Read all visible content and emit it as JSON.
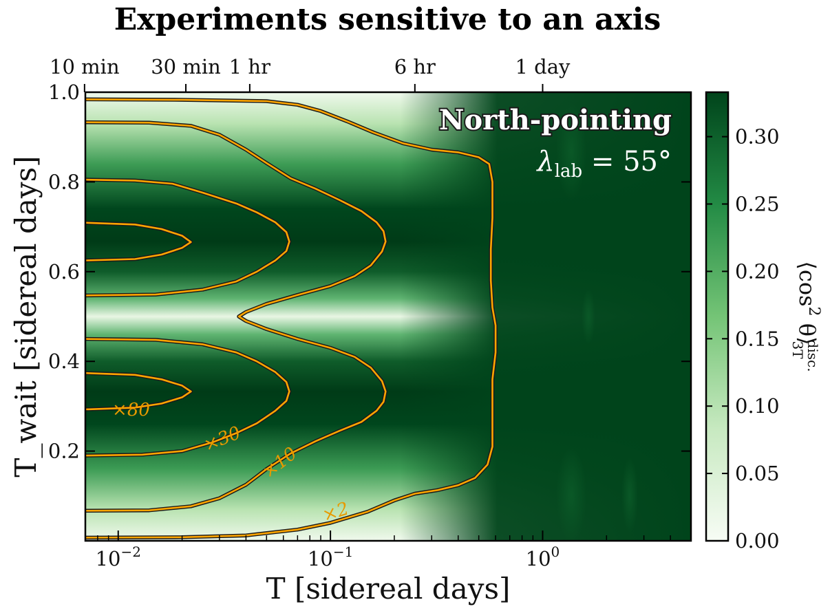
{
  "chart_data": {
    "type": "heatmap",
    "title": "Experiments sensitive to an axis",
    "xlabel": "T [sidereal days]",
    "ylabel": "T_wait [sidereal days]",
    "x_scale": "log",
    "xlim": [
      0.007,
      5
    ],
    "ylim": [
      0.0,
      1.0
    ],
    "x_ticks": [
      {
        "value": 0.01,
        "base": "10",
        "exp": "−2"
      },
      {
        "value": 0.1,
        "base": "10",
        "exp": "−1"
      },
      {
        "value": 1,
        "base": "10",
        "exp": "0"
      }
    ],
    "y_ticks": [
      {
        "value": 0.2,
        "label": "0.2"
      },
      {
        "value": 0.4,
        "label": "0.4"
      },
      {
        "value": 0.6,
        "label": "0.6"
      },
      {
        "value": 0.8,
        "label": "0.8"
      },
      {
        "value": 1.0,
        "label": "1.0"
      }
    ],
    "top_axis_ticks": [
      {
        "value": 0.00694,
        "label": "10 min"
      },
      {
        "value": 0.02083,
        "label": "30 min"
      },
      {
        "value": 0.04167,
        "label": "1 hr"
      },
      {
        "value": 0.25,
        "label": "6 hr"
      },
      {
        "value": 1.0,
        "label": "1 day"
      }
    ],
    "colorbar": {
      "label_main": "⟨cos",
      "label_sup": "2",
      "label_theta": " θ⟩",
      "label_sub": "3T",
      "label_subsup": "disc.",
      "range": [
        0.0,
        0.333
      ],
      "colors": [
        "#f7fcf5",
        "#c7e9c0",
        "#74c476",
        "#238b45",
        "#00441b"
      ],
      "ticks": [
        {
          "value": 0.0,
          "label": "0.00"
        },
        {
          "value": 0.05,
          "label": "0.05"
        },
        {
          "value": 0.1,
          "label": "0.10"
        },
        {
          "value": 0.15,
          "label": "0.15"
        },
        {
          "value": 0.2,
          "label": "0.20"
        },
        {
          "value": 0.25,
          "label": "0.25"
        },
        {
          "value": 0.3,
          "label": "0.30"
        }
      ]
    },
    "contours": [
      {
        "label": "×80",
        "label_at": [
          0.0115,
          0.29
        ],
        "label_angle": 0,
        "paths": [
          [
            [
              0.007,
              0.293
            ],
            [
              0.012,
              0.297
            ],
            [
              0.016,
              0.306
            ],
            [
              0.02,
              0.32
            ],
            [
              0.022,
              0.333
            ],
            [
              0.02,
              0.346
            ],
            [
              0.016,
              0.36
            ],
            [
              0.012,
              0.37
            ],
            [
              0.007,
              0.374
            ]
          ],
          [
            [
              0.007,
              0.625
            ],
            [
              0.012,
              0.628
            ],
            [
              0.016,
              0.638
            ],
            [
              0.02,
              0.653
            ],
            [
              0.022,
              0.666
            ],
            [
              0.02,
              0.68
            ],
            [
              0.016,
              0.695
            ],
            [
              0.012,
              0.705
            ],
            [
              0.007,
              0.709
            ]
          ]
        ]
      },
      {
        "label": "×30",
        "label_at": [
          0.031,
          0.225
        ],
        "label_angle": -22,
        "paths": [
          [
            [
              0.007,
              0.19
            ],
            [
              0.013,
              0.192
            ],
            [
              0.02,
              0.2
            ],
            [
              0.028,
              0.22
            ],
            [
              0.036,
              0.24
            ],
            [
              0.045,
              0.262
            ],
            [
              0.055,
              0.29
            ],
            [
              0.062,
              0.312
            ],
            [
              0.064,
              0.333
            ],
            [
              0.062,
              0.354
            ],
            [
              0.055,
              0.376
            ],
            [
              0.045,
              0.4
            ],
            [
              0.036,
              0.42
            ],
            [
              0.025,
              0.438
            ],
            [
              0.015,
              0.448
            ],
            [
              0.007,
              0.45
            ]
          ],
          [
            [
              0.007,
              0.547
            ],
            [
              0.015,
              0.549
            ],
            [
              0.025,
              0.56
            ],
            [
              0.036,
              0.578
            ],
            [
              0.045,
              0.6
            ],
            [
              0.055,
              0.625
            ],
            [
              0.062,
              0.646
            ],
            [
              0.064,
              0.667
            ],
            [
              0.062,
              0.688
            ],
            [
              0.055,
              0.71
            ],
            [
              0.045,
              0.732
            ],
            [
              0.036,
              0.752
            ],
            [
              0.025,
              0.776
            ],
            [
              0.018,
              0.796
            ],
            [
              0.012,
              0.803
            ],
            [
              0.007,
              0.805
            ]
          ]
        ]
      },
      {
        "label": "×10",
        "label_at": [
          0.058,
          0.172
        ],
        "label_angle": -38,
        "paths": [
          [
            [
              0.007,
              0.067
            ],
            [
              0.014,
              0.068
            ],
            [
              0.022,
              0.077
            ],
            [
              0.03,
              0.095
            ],
            [
              0.04,
              0.125
            ],
            [
              0.05,
              0.16
            ],
            [
              0.065,
              0.195
            ],
            [
              0.085,
              0.222
            ],
            [
              0.11,
              0.245
            ],
            [
              0.14,
              0.265
            ],
            [
              0.165,
              0.29
            ],
            [
              0.178,
              0.31
            ],
            [
              0.182,
              0.333
            ],
            [
              0.175,
              0.356
            ],
            [
              0.155,
              0.386
            ],
            [
              0.13,
              0.41
            ],
            [
              0.1,
              0.43
            ],
            [
              0.07,
              0.45
            ],
            [
              0.05,
              0.472
            ],
            [
              0.04,
              0.49
            ],
            [
              0.037,
              0.5
            ],
            [
              0.04,
              0.51
            ],
            [
              0.05,
              0.528
            ],
            [
              0.07,
              0.548
            ],
            [
              0.1,
              0.568
            ],
            [
              0.13,
              0.59
            ],
            [
              0.155,
              0.614
            ],
            [
              0.175,
              0.645
            ],
            [
              0.182,
              0.667
            ],
            [
              0.178,
              0.69
            ],
            [
              0.165,
              0.71
            ],
            [
              0.14,
              0.735
            ],
            [
              0.11,
              0.76
            ],
            [
              0.085,
              0.785
            ],
            [
              0.065,
              0.808
            ],
            [
              0.05,
              0.842
            ],
            [
              0.04,
              0.872
            ],
            [
              0.03,
              0.905
            ],
            [
              0.022,
              0.925
            ],
            [
              0.014,
              0.932
            ],
            [
              0.007,
              0.933
            ]
          ]
        ]
      },
      {
        "label": "×2",
        "label_at": [
          0.106,
          0.062
        ],
        "label_angle": -18,
        "paths": [
          [
            [
              0.007,
              0.007
            ],
            [
              0.02,
              0.008
            ],
            [
              0.04,
              0.012
            ],
            [
              0.07,
              0.025
            ],
            [
              0.1,
              0.04
            ],
            [
              0.15,
              0.065
            ],
            [
              0.2,
              0.09
            ],
            [
              0.25,
              0.105
            ],
            [
              0.32,
              0.113
            ],
            [
              0.4,
              0.124
            ],
            [
              0.48,
              0.14
            ],
            [
              0.55,
              0.17
            ],
            [
              0.58,
              0.21
            ],
            [
              0.58,
              0.28
            ],
            [
              0.58,
              0.36
            ],
            [
              0.6,
              0.42
            ],
            [
              0.6,
              0.48
            ],
            [
              0.58,
              0.52
            ],
            [
              0.57,
              0.58
            ],
            [
              0.57,
              0.65
            ],
            [
              0.58,
              0.72
            ],
            [
              0.58,
              0.8
            ],
            [
              0.56,
              0.84
            ],
            [
              0.5,
              0.855
            ],
            [
              0.4,
              0.866
            ],
            [
              0.3,
              0.872
            ],
            [
              0.22,
              0.886
            ],
            [
              0.16,
              0.91
            ],
            [
              0.12,
              0.935
            ],
            [
              0.09,
              0.958
            ],
            [
              0.07,
              0.972
            ],
            [
              0.05,
              0.98
            ],
            [
              0.02,
              0.983
            ],
            [
              0.007,
              0.984
            ]
          ]
        ]
      }
    ],
    "annotation": {
      "line1": "North-pointing",
      "line2_sym": "λ",
      "line2_sub": "lab",
      "line2_rest": " = 55°"
    }
  }
}
